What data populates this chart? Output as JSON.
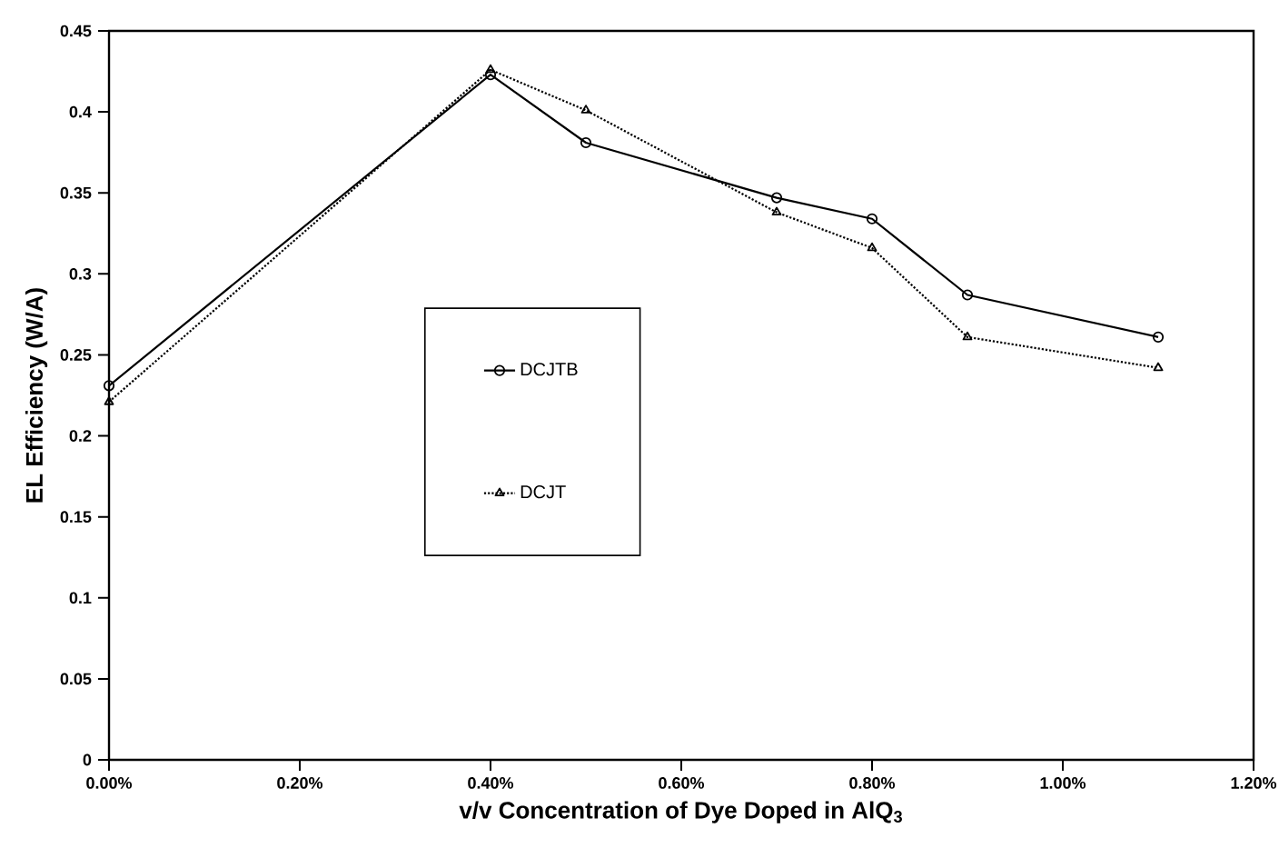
{
  "chart_data": {
    "type": "line",
    "xlabel": "v/v Concentration of Dye Doped in AlQ$_{3}$",
    "ylabel": "EL Efficiency (W/A)",
    "x": [
      0,
      0.4,
      0.5,
      0.7,
      0.8,
      0.9,
      1.1
    ],
    "series": [
      {
        "name": "DCJTB",
        "color": "#000000",
        "marker": "circle",
        "line_style": "solid",
        "values": [
          0.231,
          0.423,
          0.381,
          0.347,
          0.334,
          0.287,
          0.261
        ]
      },
      {
        "name": "DCJT",
        "color": "#000000",
        "marker": "triangle",
        "line_style": "dotted",
        "values": [
          0.221,
          0.426,
          0.401,
          0.338,
          0.316,
          0.261,
          0.242
        ]
      }
    ],
    "xlim": [
      0,
      1.2
    ],
    "ylim": [
      0,
      0.45
    ],
    "xticks": [
      {
        "value": 0,
        "label": "0.00%"
      },
      {
        "value": 0.2,
        "label": "0.20%"
      },
      {
        "value": 0.4,
        "label": "0.40%"
      },
      {
        "value": 0.6,
        "label": "0.60%"
      },
      {
        "value": 0.8,
        "label": "0.80%"
      },
      {
        "value": 1.0,
        "label": "1.00%"
      },
      {
        "value": 1.2,
        "label": "1.20%"
      }
    ],
    "yticks": [
      0,
      0.05,
      0.1,
      0.15,
      0.2,
      0.25,
      0.3,
      0.35,
      0.4,
      0.45
    ],
    "grid": false,
    "legend": "center"
  }
}
